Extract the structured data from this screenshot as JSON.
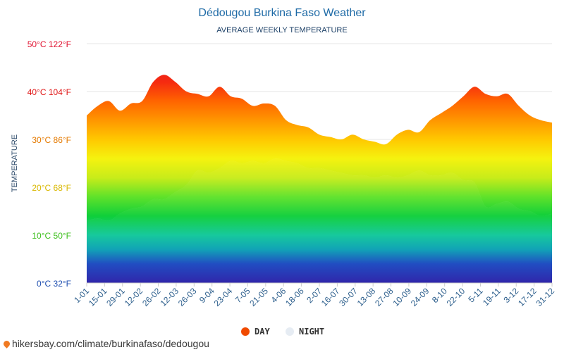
{
  "title": "Dédougou Burkina Faso Weather",
  "subtitle": "AVERAGE WEEKLY TEMPERATURE",
  "source_text": "hikersbay.com/climate/burkinafaso/dedougou",
  "chart_data": {
    "type": "area",
    "ylabel": "TEMPERATURE",
    "ylim": [
      0,
      50
    ],
    "grid": true,
    "y_ticks": [
      {
        "value": 0,
        "label": "0°C 32°F",
        "color": "#1f4fb0"
      },
      {
        "value": 10,
        "label": "10°C 50°F",
        "color": "#3cbf1c"
      },
      {
        "value": 20,
        "label": "20°C 68°F",
        "color": "#d9b800"
      },
      {
        "value": 30,
        "label": "30°C 86°F",
        "color": "#e57a00"
      },
      {
        "value": 40,
        "label": "40°C 104°F",
        "color": "#e01717"
      },
      {
        "value": 50,
        "label": "50°C 122°F",
        "color": "#e0112f"
      }
    ],
    "x_labels": [
      "1-01",
      "15-01",
      "29-01",
      "12-02",
      "26-02",
      "12-03",
      "26-03",
      "9-04",
      "23-04",
      "7-05",
      "21-05",
      "4-06",
      "18-06",
      "2-07",
      "16-07",
      "30-07",
      "13-08",
      "27-08",
      "10-09",
      "24-09",
      "8-10",
      "22-10",
      "5-11",
      "19-11",
      "3-12",
      "17-12",
      "31-12"
    ],
    "legend_position": "bottom-center",
    "series": [
      {
        "name": "DAY",
        "color": "#f04a00",
        "values": [
          35,
          37,
          38,
          36,
          37.5,
          38,
          42,
          43.5,
          42,
          40,
          39.5,
          39,
          41,
          39,
          38.5,
          37,
          37.5,
          37,
          34,
          33,
          32.5,
          31,
          30.5,
          30,
          31,
          30,
          29.5,
          29,
          31,
          32,
          31.5,
          34,
          35.5,
          37,
          39,
          41,
          39.5,
          39,
          39.5,
          37,
          35,
          34,
          33.5
        ]
      },
      {
        "name": "NIGHT",
        "color": "#e6ecf3",
        "values": [
          13,
          13.5,
          13,
          14.5,
          15.5,
          16,
          17.5,
          17.5,
          19,
          20.5,
          23.5,
          23,
          24,
          25.5,
          25,
          25.5,
          25,
          26,
          25.5,
          25,
          24,
          24,
          23.5,
          23,
          22.5,
          22.5,
          22,
          22.5,
          22,
          22.5,
          23.5,
          22.5,
          22.5,
          23,
          21.5,
          21,
          16,
          16.5,
          17,
          15.5,
          15,
          14,
          14.5
        ]
      }
    ]
  }
}
